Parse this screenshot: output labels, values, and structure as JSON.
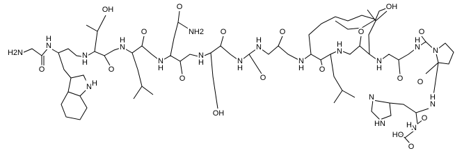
{
  "labels": [
    "H2N",
    "N",
    "H",
    "O",
    "N",
    "H",
    "N",
    "H",
    "OH",
    "O",
    "N",
    "H",
    "O",
    "N",
    "H",
    "O",
    "NH2",
    "O",
    "N",
    "H",
    "O",
    "OH",
    "N",
    "H",
    "O",
    "N",
    "H",
    "O",
    "N",
    "H",
    "OH",
    "O",
    "N",
    "H",
    "O",
    "N",
    "H",
    "O",
    "N",
    "H",
    "O",
    "N",
    "O",
    "N",
    "H",
    "N",
    "HN",
    "O",
    "N",
    "H",
    "HO",
    "O"
  ]
}
